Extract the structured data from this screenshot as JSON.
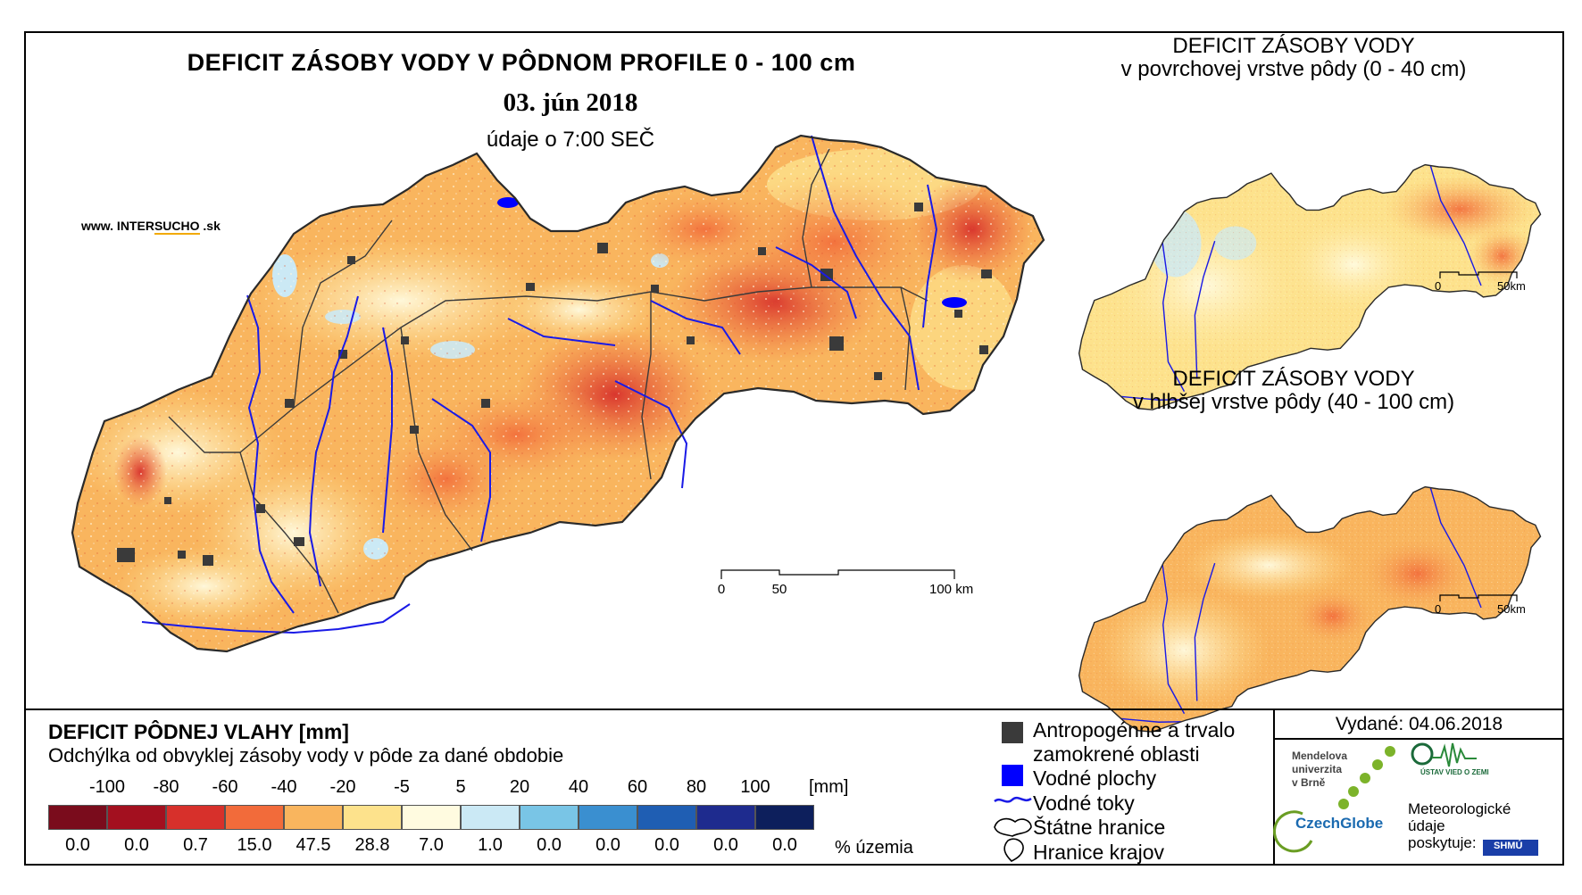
{
  "main_title": "DEFICIT ZÁSOBY VODY V PÔDNOM PROFILE 0 - 100 cm",
  "date": "03. jún 2018",
  "time_note": "údaje o 7:00 SEČ",
  "watermark": {
    "prefix": "www. INTER",
    "highlight": "SUCHO",
    "suffix": " .sk"
  },
  "scale_main": {
    "labels": [
      "0",
      "50",
      "100 km"
    ]
  },
  "inset_top": {
    "title_line1": "DEFICIT ZÁSOBY VODY",
    "title_line2": "v povrchovej vrstve pôdy (0 - 40 cm)",
    "scale_labels": [
      "0",
      "50km"
    ]
  },
  "inset_bottom": {
    "title_line1": "DEFICIT ZÁSOBY VODY",
    "title_line2": "v hlbšej vrstve pôdy (40 - 100 cm)",
    "scale_labels": [
      "0",
      "50km"
    ]
  },
  "legend": {
    "title": "DEFICIT PÔDNEJ VLAHY [mm]",
    "subtitle": "Odchýlka od obvyklej zásoby vody v pôde za dané obdobie",
    "unit": "[mm]",
    "ticks": [
      "-100",
      "-80",
      "-60",
      "-40",
      "-20",
      "-5",
      "5",
      "20",
      "40",
      "60",
      "80",
      "100"
    ],
    "colors": [
      "#7a0c1c",
      "#a3101f",
      "#d7302b",
      "#f26b3a",
      "#f9b55e",
      "#fde28c",
      "#fffbe0",
      "#cbe9f5",
      "#79c5e6",
      "#3a8fd0",
      "#1f5eb3",
      "#1e2b8e",
      "#0d1f5c"
    ],
    "percentages": [
      "0.0",
      "0.0",
      "0.7",
      "15.0",
      "47.5",
      "28.8",
      "7.0",
      "1.0",
      "0.0",
      "0.0",
      "0.0",
      "0.0",
      "0.0"
    ],
    "pct_label": "% územia"
  },
  "symbols": {
    "urban": "Antropogénne a trvalo zamokrené oblasti",
    "urban_l1": "Antropogénne a trvalo",
    "urban_l2": "zamokrené oblasti",
    "water_bodies": "Vodné plochy",
    "rivers": "Vodné toky",
    "state_border": "Štátne hranice",
    "region_border": "Hranice krajov"
  },
  "issued": "Vydané: 04.06.2018",
  "logos": {
    "mendel": [
      "Mendelova",
      "univerzita",
      "v Brně"
    ],
    "czechglobe": "CzechGlobe",
    "uvoz": "ÚSTAV VIED O ZEMI",
    "shmu": "SHMÚ",
    "met_l1": "Meteorologické",
    "met_l2": "údaje",
    "met_l3": "poskytuje:"
  }
}
